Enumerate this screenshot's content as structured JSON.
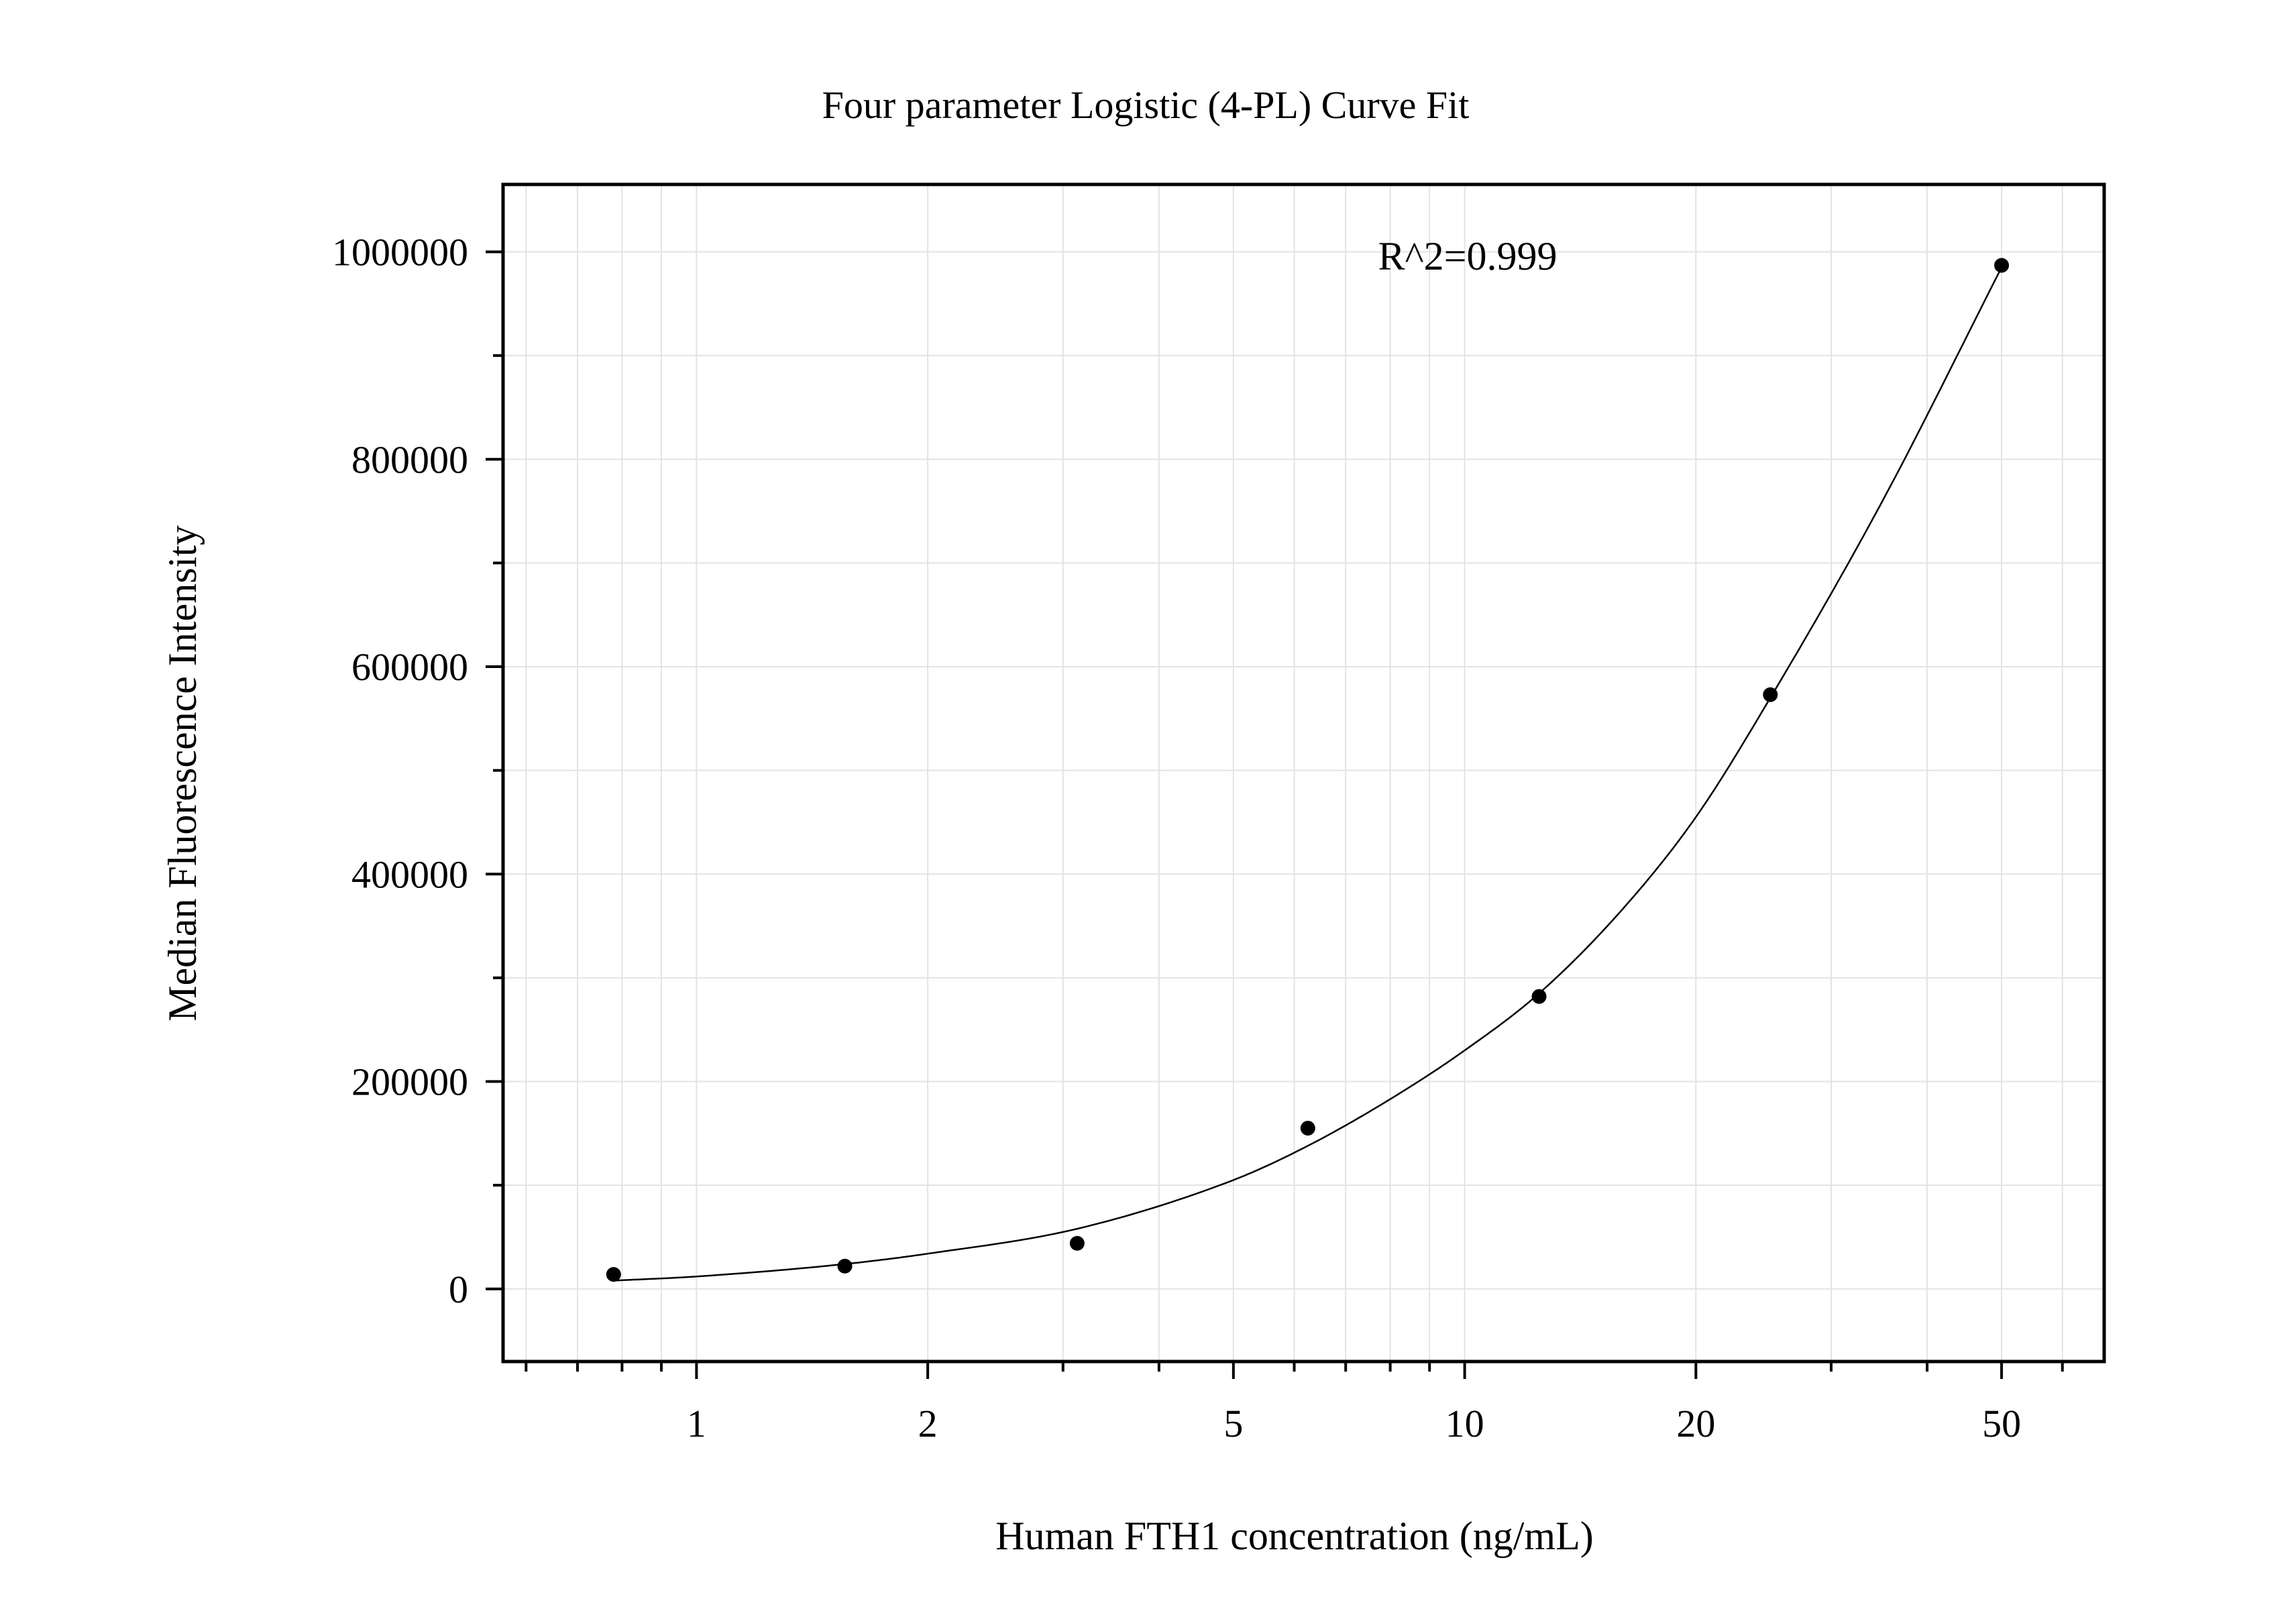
{
  "chart_data": {
    "type": "scatter",
    "title": "Four parameter Logistic (4-PL) Curve Fit",
    "xlabel": "Human FTH1 concentration (ng/mL)",
    "ylabel": "Median Fluorescence Intensity",
    "x_scale": "log",
    "xlim": [
      0.56,
      68
    ],
    "ylim": [
      -70000,
      1065000
    ],
    "x_ticks": [
      1,
      2,
      5,
      10,
      20,
      50
    ],
    "x_tick_labels": [
      "1",
      "2",
      "5",
      "10",
      "20",
      "50"
    ],
    "y_ticks": [
      0,
      200000,
      400000,
      600000,
      800000,
      1000000
    ],
    "y_tick_labels": [
      "0",
      "200000",
      "400000",
      "600000",
      "800000",
      "1000000"
    ],
    "grid": true,
    "annotation": "R^2=0.999",
    "colors": {
      "points": "#000000",
      "curve": "#000000",
      "grid": "#e3e3e3",
      "axes": "#000000"
    },
    "points": [
      {
        "x": 0.78,
        "y": 14000
      },
      {
        "x": 1.56,
        "y": 22000
      },
      {
        "x": 3.13,
        "y": 44000
      },
      {
        "x": 6.25,
        "y": 155000
      },
      {
        "x": 12.5,
        "y": 282000
      },
      {
        "x": 25,
        "y": 573000
      },
      {
        "x": 50,
        "y": 987000
      }
    ],
    "fit_curve": {
      "x": [
        0.78,
        1,
        1.56,
        2,
        3.13,
        5,
        6.25,
        8,
        10,
        12.5,
        16,
        20,
        25,
        35,
        50
      ],
      "y": [
        8000,
        12000,
        24000,
        34000,
        58000,
        105000,
        138000,
        183000,
        230000,
        285000,
        365000,
        455000,
        570000,
        760000,
        985000
      ]
    }
  }
}
